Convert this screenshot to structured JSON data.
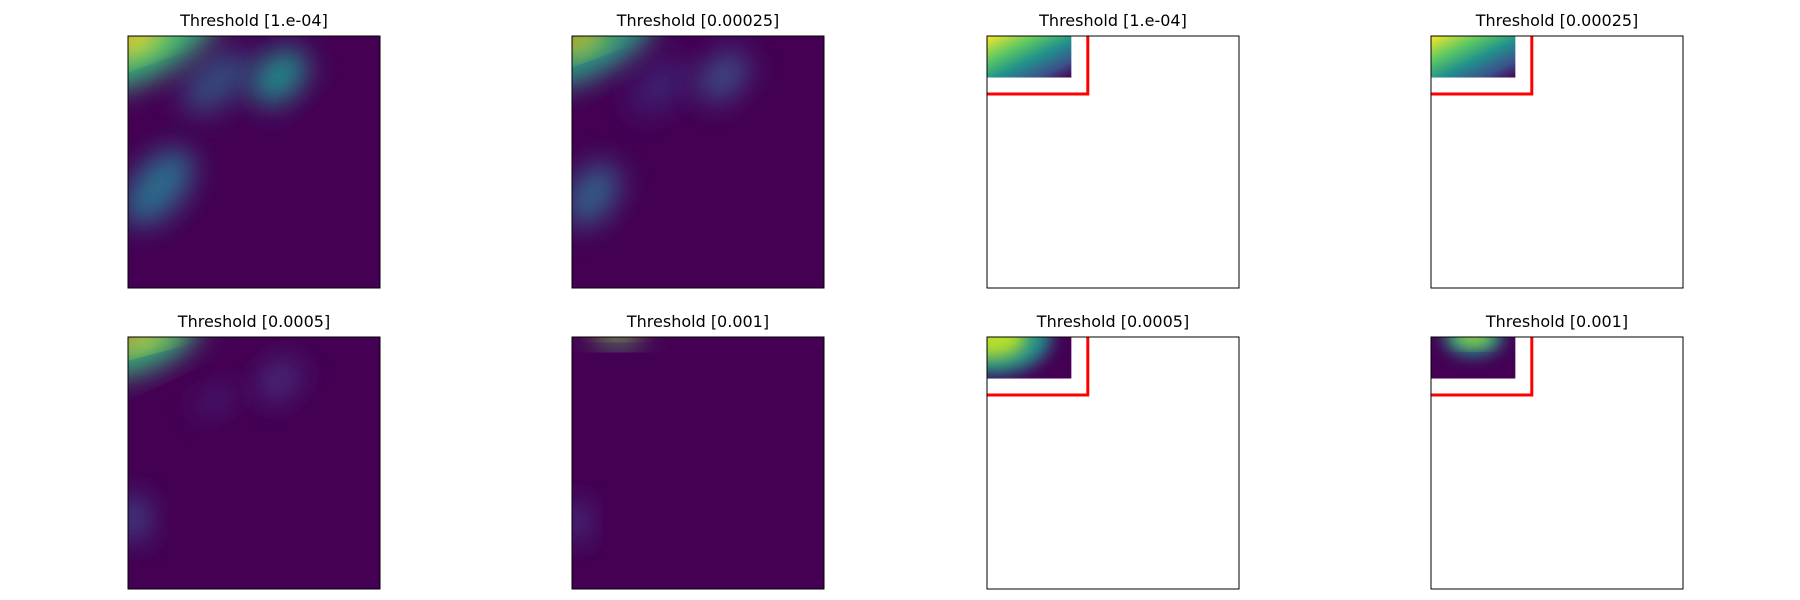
{
  "panels": [
    {
      "title": "Threshold [1.e-04]"
    },
    {
      "title": "Threshold [0.00025]"
    },
    {
      "title": "Threshold [1.e-04]"
    },
    {
      "title": "Threshold [0.00025]"
    },
    {
      "title": "Threshold [0.0005]"
    },
    {
      "title": "Threshold [0.001]"
    },
    {
      "title": "Threshold [0.0005]"
    },
    {
      "title": "Threshold [0.001]"
    }
  ]
}
